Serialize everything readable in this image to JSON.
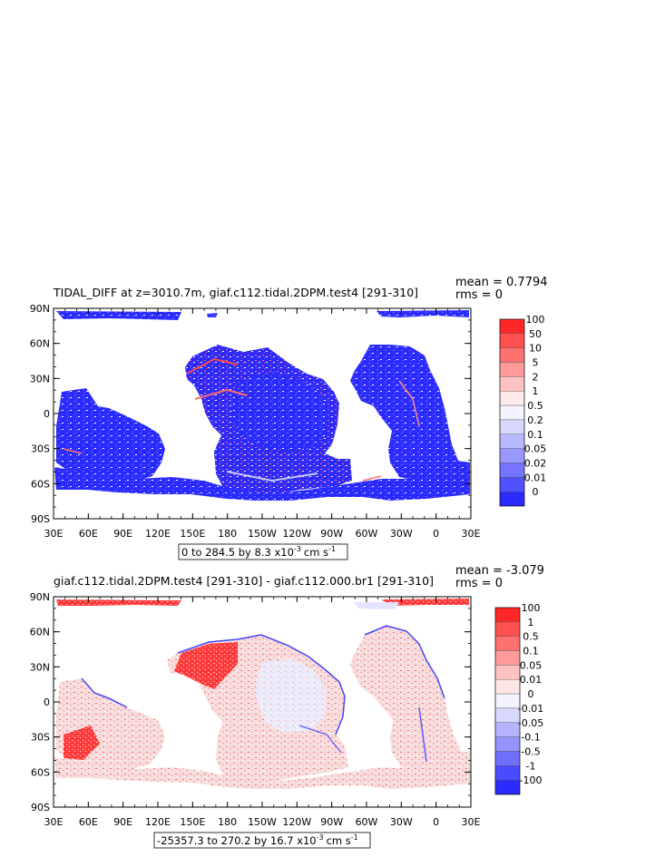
{
  "panels": [
    {
      "title": "TIDAL_DIFF at z=3010.7m, giaf.c112.tidal.2DPM.test4 [291-310]",
      "mean_label": "mean = 0.7794",
      "rms_label": "rms = 0",
      "range_label_pre": "0 to 284.5 by 8.3 x10",
      "range_exp": "-3",
      "range_unit": "cm s",
      "range_unit_exp": "-1",
      "legend": {
        "labels": [
          "100",
          "50",
          "10",
          "5",
          "2",
          "1",
          "0.5",
          "0.2",
          "0.1",
          "0.05",
          "0.02",
          "0.01",
          "0"
        ],
        "colors": [
          "#ff2626",
          "#ff5050",
          "#ff7070",
          "#ff9a9a",
          "#ffc2c2",
          "#ffeaea",
          "#f4f4ff",
          "#d8d8ff",
          "#b8b8ff",
          "#9898ff",
          "#7474ff",
          "#5050ff",
          "#2a2aff"
        ]
      }
    },
    {
      "title": "giaf.c112.tidal.2DPM.test4 [291-310] - giaf.c112.000.br1 [291-310]",
      "mean_label": "mean = -3.079",
      "rms_label": "rms = 0",
      "range_label_pre": "-25357.3 to 270.2 by 16.7 x10",
      "range_exp": "-3",
      "range_unit": "cm s",
      "range_unit_exp": "-1",
      "legend": {
        "labels": [
          "100",
          "1",
          "0.5",
          "0.1",
          "0.05",
          "0.01",
          "0",
          "-0.01",
          "-0.05",
          "-0.1",
          "-0.5",
          "-1",
          "-100"
        ],
        "colors": [
          "#ff2626",
          "#ff5050",
          "#ff7070",
          "#ff9a9a",
          "#ffc2c2",
          "#ffe6e6",
          "#f4f4ff",
          "#d8d8ff",
          "#b4b4ff",
          "#9494ff",
          "#7070ff",
          "#4a4aff",
          "#2a2aff"
        ]
      }
    }
  ],
  "chart_data": [
    {
      "type": "heatmap",
      "title": "TIDAL_DIFF at z=3010.7m, giaf.c112.tidal.2DPM.test4 [291-310]",
      "x_ticks": [
        "30E",
        "60E",
        "90E",
        "120E",
        "150E",
        "180",
        "150W",
        "120W",
        "90W",
        "60W",
        "30W",
        "0",
        "30E"
      ],
      "y_ticks": [
        "90N",
        "60N",
        "30N",
        "0",
        "30S",
        "60S",
        "90S"
      ],
      "xlim": [
        30,
        390
      ],
      "ylim": [
        -90,
        90
      ],
      "stats": {
        "mean": 0.7794,
        "rms": 0
      },
      "range": {
        "min": 0,
        "max": 284.5,
        "interval": 8.3,
        "scale": "x10^-3",
        "units": "cm s^-1"
      },
      "legend_levels": [
        100,
        50,
        10,
        5,
        2,
        1,
        0.5,
        0.2,
        0.1,
        0.05,
        0.02,
        0.01,
        0
      ]
    },
    {
      "type": "heatmap",
      "title": "giaf.c112.tidal.2DPM.test4 [291-310] - giaf.c112.000.br1 [291-310]",
      "x_ticks": [
        "30E",
        "60E",
        "90E",
        "120E",
        "150E",
        "180",
        "150W",
        "120W",
        "90W",
        "60W",
        "30W",
        "0",
        "30E"
      ],
      "y_ticks": [
        "90N",
        "60N",
        "30N",
        "0",
        "30S",
        "60S",
        "90S"
      ],
      "xlim": [
        30,
        390
      ],
      "ylim": [
        -90,
        90
      ],
      "stats": {
        "mean": -3.079,
        "rms": 0
      },
      "range": {
        "min": -25357.3,
        "max": 270.2,
        "interval": 16.7,
        "scale": "x10^-3",
        "units": "cm s^-1"
      },
      "legend_levels": [
        100,
        1,
        0.5,
        0.1,
        0.05,
        0.01,
        0,
        -0.01,
        -0.05,
        -0.1,
        -0.5,
        -1,
        -100
      ]
    }
  ]
}
